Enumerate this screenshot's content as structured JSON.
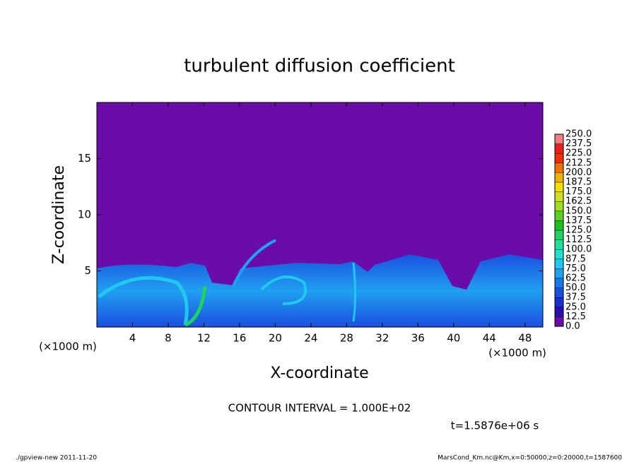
{
  "chart_data": {
    "type": "contour",
    "title": "turbulent diffusion coefficient",
    "xlabel": "X-coordinate",
    "ylabel": "Z-coordinate",
    "x_unit": "(×1000 m)",
    "xlim": [
      0,
      50
    ],
    "xticks": [
      4,
      8,
      12,
      16,
      20,
      24,
      28,
      32,
      36,
      40,
      44,
      48
    ],
    "ylim": [
      0,
      20
    ],
    "yticks": [
      5,
      10,
      15
    ],
    "colorbar": {
      "ticks": [
        {
          "value": 0,
          "label": "0.0"
        },
        {
          "value": 12.5,
          "label": "12.5"
        },
        {
          "value": 25,
          "label": "25.0"
        },
        {
          "value": 37.5,
          "label": "37.5"
        },
        {
          "value": 50,
          "label": "50.0"
        },
        {
          "value": 62.5,
          "label": "62.5"
        },
        {
          "value": 75,
          "label": "75.0"
        },
        {
          "value": 87.5,
          "label": "87.5"
        },
        {
          "value": 100,
          "label": "100.0"
        },
        {
          "value": 112.5,
          "label": "112.5"
        },
        {
          "value": 125,
          "label": "125.0"
        },
        {
          "value": 137.5,
          "label": "137.5"
        },
        {
          "value": 150,
          "label": "150.0"
        },
        {
          "value": 162.5,
          "label": "162.5"
        },
        {
          "value": 175,
          "label": "175.0"
        },
        {
          "value": 187.5,
          "label": "187.5"
        },
        {
          "value": 200,
          "label": "200.0"
        },
        {
          "value": 212.5,
          "label": "212.5"
        },
        {
          "value": 225,
          "label": "225.0"
        },
        {
          "value": 237.5,
          "label": "237.5"
        },
        {
          "value": 250,
          "label": "250.0"
        }
      ],
      "colors": [
        "#6a0ca8",
        "#2a10b4",
        "#1a30d0",
        "#1a50e0",
        "#1878f0",
        "#20a0f0",
        "#20c8f0",
        "#20e0d0",
        "#20e0a0",
        "#20d060",
        "#20c020",
        "#60d020",
        "#a0e020",
        "#d0e020",
        "#f0e000",
        "#f0b000",
        "#f07000",
        "#f03000",
        "#e82020",
        "#f08080"
      ]
    },
    "contour_interval": "CONTOUR INTERVAL = 1.000E+02",
    "time_label": "t=1.5876e+06 s",
    "footer_left": "./gpview-new  2011-11-20",
    "footer_right": "MarsCond_Km.nc@Km,x=0:50000,z=0:20000,t=1587600"
  }
}
